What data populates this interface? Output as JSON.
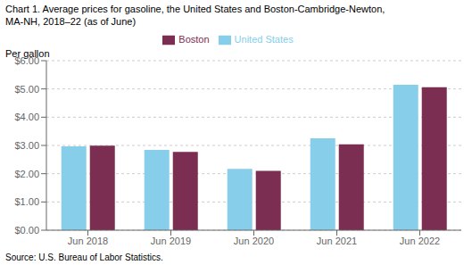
{
  "chart_data": {
    "type": "bar",
    "title": "Chart 1. Average prices for gasoline, the United States and Boston-Cambridge-Newton,",
    "subtitle": "MA-NH, 2018–22 (as of June)",
    "y_label": "Per gallon",
    "source": "Source: U.S. Bureau of Labor Statistics.",
    "categories": [
      "Jun 2018",
      "Jun 2019",
      "Jun 2020",
      "Jun 2021",
      "Jun 2022"
    ],
    "series": [
      {
        "name": "United States",
        "color": "#87CEEB",
        "values": [
          2.97,
          2.84,
          2.17,
          3.25,
          5.15
        ]
      },
      {
        "name": "Boston",
        "color": "#7B2D52",
        "values": [
          2.99,
          2.77,
          2.1,
          3.04,
          5.06
        ]
      }
    ],
    "ylim": [
      0,
      6.0
    ],
    "yticks": [
      {
        "value": 0.0,
        "label": "$0.00"
      },
      {
        "value": 1.0,
        "label": "$1.00"
      },
      {
        "value": 2.0,
        "label": "$2.00"
      },
      {
        "value": 3.0,
        "label": "$3.00"
      },
      {
        "value": 4.0,
        "label": "$4.00"
      },
      {
        "value": 5.0,
        "label": "$5.00"
      },
      {
        "value": 6.0,
        "label": "$6.00"
      }
    ],
    "grid": true,
    "legend": "top"
  }
}
